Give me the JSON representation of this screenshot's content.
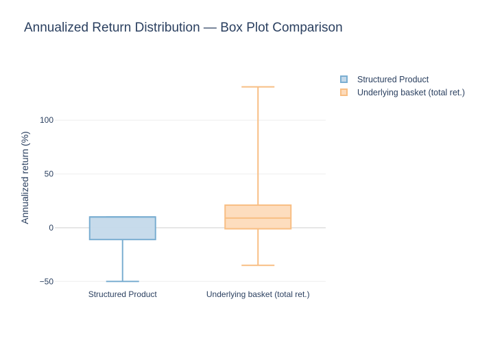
{
  "chart_data": {
    "type": "box",
    "title": "Annualized Return Distribution — Box Plot Comparison",
    "xlabel": "",
    "ylabel": "Annualized return (%)",
    "ylim": [
      -53,
      148
    ],
    "yticks": [
      -50,
      0,
      50,
      100
    ],
    "ytick_labels": [
      "−50",
      "0",
      "50",
      "100"
    ],
    "grid": true,
    "legend_position": "top-right",
    "categories": [
      "Structured Product",
      "Underlying basket (total ret.)"
    ],
    "series": [
      {
        "name": "Structured Product",
        "color": "#7aaed1",
        "fill": "#c4d9ea",
        "min": -50,
        "q1": -11,
        "median": 10,
        "q3": 10,
        "max": 10
      },
      {
        "name": "Underlying basket (total ret.)",
        "color": "#f8be83",
        "fill": "#fddbbb",
        "min": -35,
        "q1": -1,
        "median": 9,
        "q3": 21,
        "max": 131
      }
    ]
  }
}
